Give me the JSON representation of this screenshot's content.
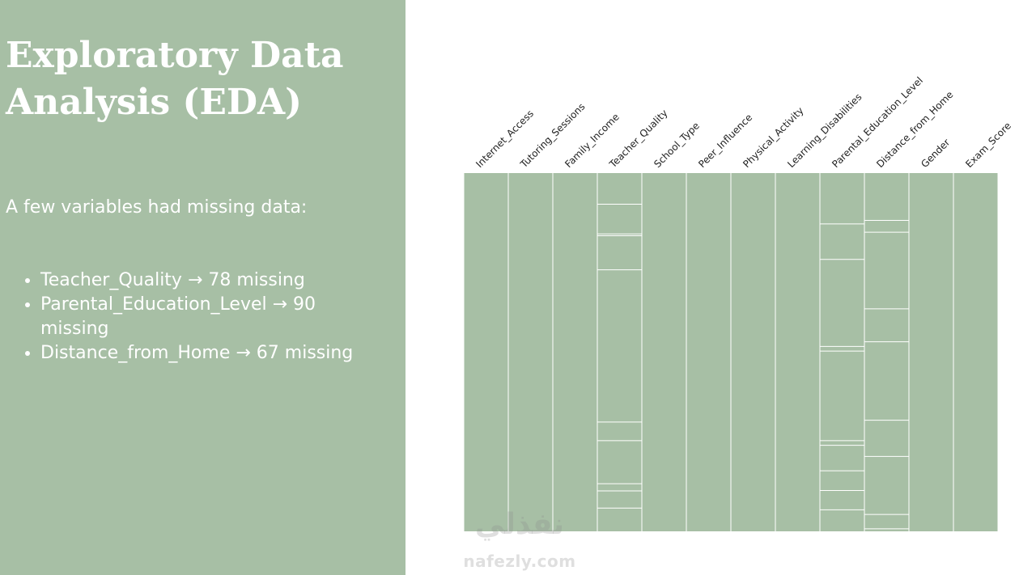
{
  "slide": {
    "title_line1": "Exploratory Data",
    "title_line2": "Analysis (EDA)",
    "intro": "A few variables had missing data:",
    "bullets": [
      "Teacher_Quality → 78 missing",
      "Parental_Education_Level → 90 missing",
      "Distance_from_Home → 67 missing"
    ]
  },
  "watermark": {
    "arabic": "نفذلي",
    "latin": "nafezly.com"
  },
  "colors": {
    "panel": "#a7bfa5",
    "matrix_fill": "#a7bfa5",
    "matrix_gap": "#ffffff",
    "text_light": "#ffffff",
    "label_text": "#222222"
  },
  "chart_data": {
    "type": "heatmap",
    "subtype": "missing-value matrix",
    "columns": [
      "Internet_Access",
      "Tutoring_Sessions",
      "Family_Income",
      "Teacher_Quality",
      "School_Type",
      "Peer_Influence",
      "Physical_Activity",
      "Learning_Disabilities",
      "Parental_Education_Level",
      "Distance_from_Home",
      "Gender",
      "Exam_Score"
    ],
    "missing_counts": [
      0,
      0,
      0,
      78,
      0,
      0,
      0,
      0,
      90,
      67,
      0,
      0
    ],
    "missing_row_fractions": {
      "Teacher_Quality": [
        0.087,
        0.17,
        0.175,
        0.27,
        0.695,
        0.747,
        0.867,
        0.887,
        0.935
      ],
      "Parental_Education_Level": [
        0.142,
        0.241,
        0.484,
        0.497,
        0.747,
        0.76,
        0.831,
        0.886,
        0.94
      ],
      "Distance_from_Home": [
        0.132,
        0.165,
        0.379,
        0.471,
        0.69,
        0.791,
        0.953,
        0.993
      ]
    },
    "label_rotation": "45 degrees",
    "grid": false,
    "legend": "none"
  }
}
